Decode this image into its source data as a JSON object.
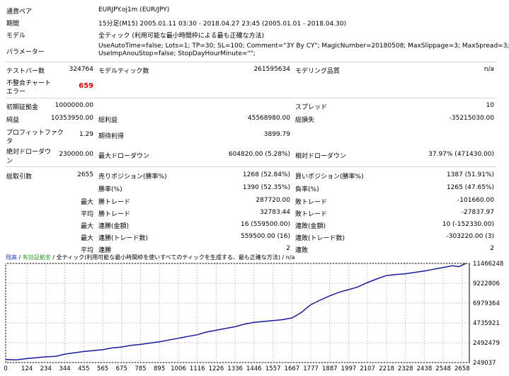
{
  "meta": {
    "symbol_label": "通貨ペア",
    "symbol": "EURJPY.oj1m (EUR/JPY)",
    "period_label": "期間",
    "period": "15分足(M15) 2005.01.11 03:30 - 2018.04.27 23:45 (2005.01.01 - 2018.04.30)",
    "model_label": "モデル",
    "model": "全ティック (利用可能な最小時間枠による最も正確な方法)",
    "params_label": "パラメーター",
    "params_line1": "UseAutoTime=false; Lots=1; TP=30; SL=100; Comment=\"3Y By CY\"; MagicNumber=20180508; MaxSlippage=3; MaxSpread=3;",
    "params_line2": "UseImpAnouStop=false; StopDayHourMinute=\"\";"
  },
  "bars": {
    "bars_label": "テストバー数",
    "bars": "324764",
    "ticks_label": "モデルティック数",
    "ticks": "261595634",
    "quality_label": "モデリング品質",
    "quality": "n/a"
  },
  "mismatch": {
    "label_line1": "不整合チャート",
    "label_line2": "エラー",
    "value": "659"
  },
  "deposit": {
    "label": "初期証拠金",
    "value": "1000000.00",
    "spread_label": "スプレッド",
    "spread": "10"
  },
  "profit": {
    "net_label": "純益",
    "net": "10353950.00",
    "gross_profit_label": "総利益",
    "gross_profit": "45568980.00",
    "gross_loss_label": "総損失",
    "gross_loss": "-35215030.00"
  },
  "factor": {
    "pf_label_line1": "プロフィットファク",
    "pf_label_line2": "タ",
    "pf": "1.29",
    "payoff_label": "期待利得",
    "payoff": "3899.79"
  },
  "drawdown": {
    "abs_label_line1": "絶対ドローダウ",
    "abs_label_line2": "ン",
    "abs": "230000.00",
    "max_label": "最大ドローダウン",
    "max": "604820.00 (5.28%)",
    "rel_label": "相対ドローダウン",
    "rel": "37.97% (471430.00)"
  },
  "trades": {
    "total_label": "総取引数",
    "total": "2655",
    "short_label": "売りポジション(勝率%)",
    "short": "1268 (52.84%)",
    "long_label": "買いポジション(勝率%)",
    "long": "1387 (51.91%)",
    "win_pct_label": "勝率(%)",
    "win_pct": "1390 (52.35%)",
    "loss_pct_label": "負率(%)",
    "loss_pct": "1265 (47.65%)",
    "max_prefix": "最大",
    "avg_prefix": "平均",
    "max_win_label": "勝トレード",
    "max_win": "287720.00",
    "max_loss_label": "敗トレード",
    "max_loss": "-101660.00",
    "avg_win_label": "勝トレード",
    "avg_win": "32783.44",
    "avg_loss_label": "敗トレード",
    "avg_loss": "-27837.97",
    "cons_wins_amt_label": "連勝(金額)",
    "cons_wins_amt": "16 (559500.00)",
    "cons_loss_amt_label": "連敗(金額)",
    "cons_loss_amt": "10 (-152330.00)",
    "cons_profit_label": "連勝(トレード数)",
    "cons_profit": "559500.00 (16)",
    "cons_lossc_label": "連敗(トレード数)",
    "cons_lossc": "-303220.00 (3)",
    "avg_cons_win_label": "連勝",
    "avg_cons_win": "2",
    "avg_cons_loss_label": "連敗",
    "avg_cons_loss": "2"
  },
  "chart_header": {
    "balance": "残高",
    "sep1": "/",
    "equity": "有効証拠金",
    "sep2": "/",
    "model": "全ティック(利用可能な最小時間枠を使いすべてのティックを生成する、最も正確な方法)",
    "sep3": "/",
    "na": "n/a"
  },
  "chart_data": {
    "type": "line",
    "x_ticks": [
      "0",
      "124",
      "234",
      "344",
      "455",
      "565",
      "675",
      "785",
      "895",
      "1006",
      "1116",
      "1226",
      "1336",
      "1446",
      "1557",
      "1667",
      "1777",
      "1887",
      "1997",
      "2107",
      "2218",
      "2328",
      "2438",
      "2548",
      "2658"
    ],
    "y_ticks": [
      "249037",
      "2492479",
      "4735921",
      "6979364",
      "9222806",
      "11466248"
    ],
    "ylim": [
      249037,
      11466248
    ],
    "xlim": [
      0,
      2700
    ],
    "series": [
      {
        "color": "#1a1a9c",
        "x": [
          0,
          60,
          124,
          180,
          234,
          290,
          344,
          400,
          455,
          510,
          565,
          620,
          675,
          730,
          785,
          840,
          895,
          950,
          1006,
          1060,
          1116,
          1170,
          1226,
          1280,
          1336,
          1390,
          1446,
          1500,
          1557,
          1610,
          1667,
          1720,
          1777,
          1830,
          1887,
          1940,
          1997,
          2050,
          2107,
          2160,
          2218,
          2270,
          2328,
          2380,
          2438,
          2490,
          2548,
          2600,
          2640,
          2680
        ],
        "y": [
          600000,
          550000,
          700000,
          800000,
          900000,
          950000,
          1200000,
          1350000,
          1500000,
          1600000,
          1700000,
          1900000,
          2000000,
          2200000,
          2300000,
          2450000,
          2600000,
          2800000,
          3000000,
          3200000,
          3400000,
          3700000,
          3900000,
          4100000,
          4300000,
          4600000,
          4800000,
          4900000,
          5000000,
          5100000,
          5300000,
          5900000,
          6800000,
          7300000,
          7800000,
          8200000,
          8500000,
          8800000,
          9300000,
          9700000,
          10100000,
          10200000,
          10300000,
          10450000,
          10600000,
          10800000,
          11000000,
          11200000,
          11100000,
          11466248
        ]
      }
    ]
  }
}
